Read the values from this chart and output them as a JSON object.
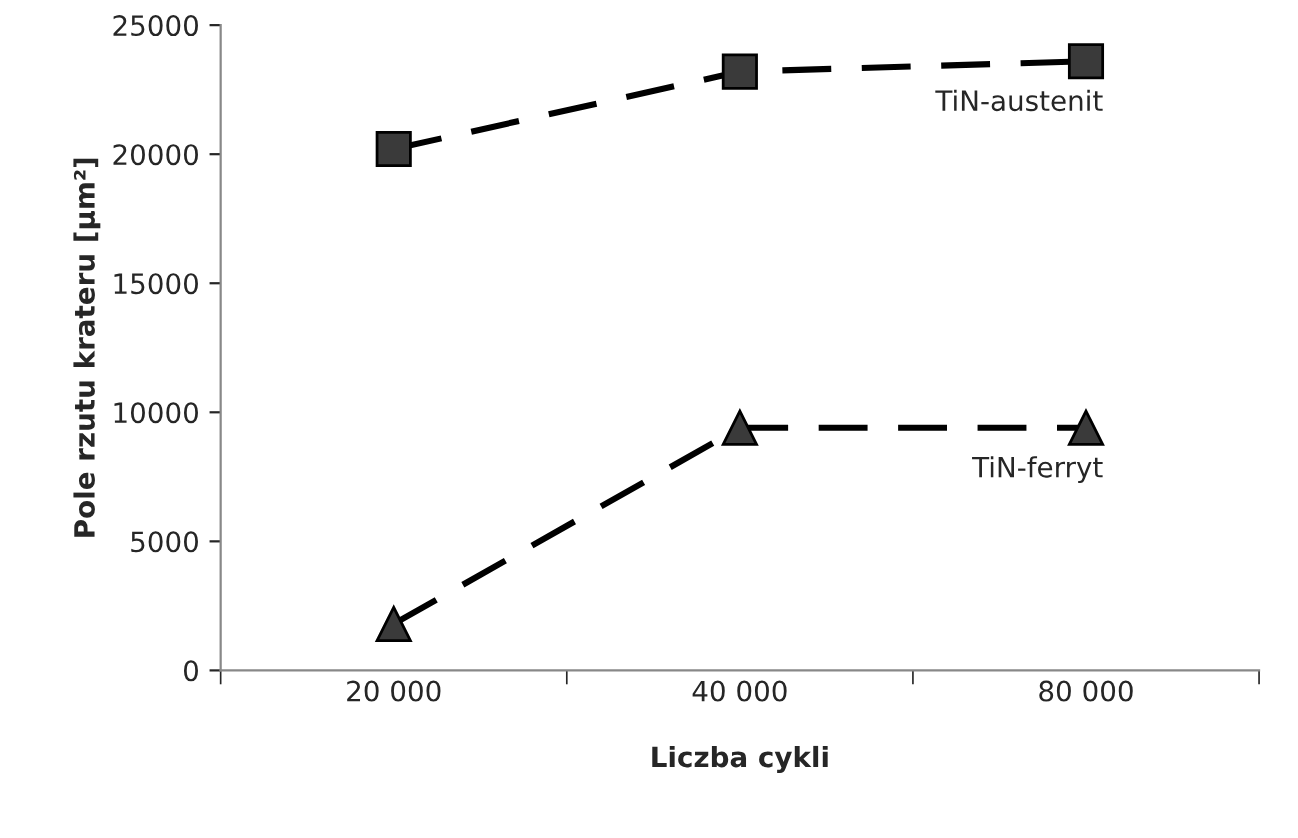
{
  "chart_data": {
    "type": "line",
    "xlabel": "Liczba cykli",
    "ylabel": "Pole rzutu krateru [μm²]",
    "categories": [
      "20 000",
      "40 000",
      "80 000"
    ],
    "series": [
      {
        "name": "TiN-austenit",
        "color": "#3a3a3a",
        "marker": "square",
        "values": [
          20200,
          23200,
          23600
        ]
      },
      {
        "name": "TiN-ferryt",
        "color": "#3a3a3a",
        "marker": "triangle",
        "values": [
          1800,
          9400,
          9400
        ]
      }
    ],
    "ylim": [
      0,
      25000
    ],
    "yticks": [
      0,
      5000,
      10000,
      15000,
      20000,
      25000
    ],
    "line_style": "dashed",
    "grid": false,
    "legend": false
  }
}
